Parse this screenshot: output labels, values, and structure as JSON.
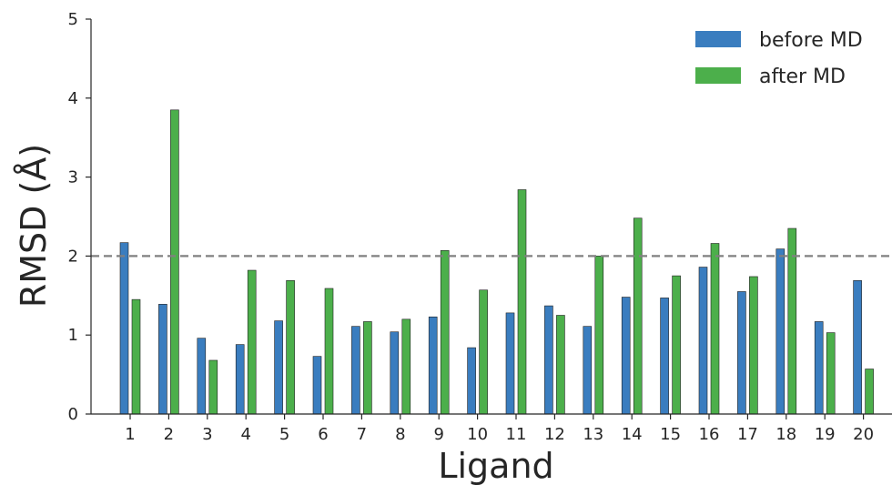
{
  "chart_data": {
    "type": "bar",
    "title": "",
    "xlabel": "Ligand",
    "ylabel": "RMSD (Å)",
    "ylim": [
      0,
      5
    ],
    "yticks": [
      "0",
      "1",
      "2",
      "3",
      "4",
      "5"
    ],
    "categories": [
      "1",
      "2",
      "3",
      "4",
      "5",
      "6",
      "7",
      "8",
      "9",
      "10",
      "11",
      "12",
      "13",
      "14",
      "15",
      "16",
      "17",
      "18",
      "19",
      "20"
    ],
    "series": [
      {
        "name": "before MD",
        "color": "#3a7dbf",
        "values": [
          2.17,
          1.39,
          0.96,
          0.88,
          1.18,
          0.73,
          1.11,
          1.04,
          1.23,
          0.84,
          1.28,
          1.37,
          1.11,
          1.48,
          1.47,
          1.86,
          1.55,
          2.09,
          1.17,
          1.69
        ]
      },
      {
        "name": "after MD",
        "color": "#4caf4b",
        "values": [
          1.45,
          3.85,
          0.68,
          1.82,
          1.69,
          1.59,
          1.17,
          1.2,
          2.07,
          1.57,
          2.84,
          1.25,
          2.0,
          2.48,
          1.75,
          2.16,
          1.74,
          2.35,
          1.03,
          0.57
        ]
      }
    ],
    "reference_line": {
      "y": 2,
      "style": "dashed",
      "color": "#808080"
    },
    "grid": false,
    "legend_position": "top-right"
  }
}
